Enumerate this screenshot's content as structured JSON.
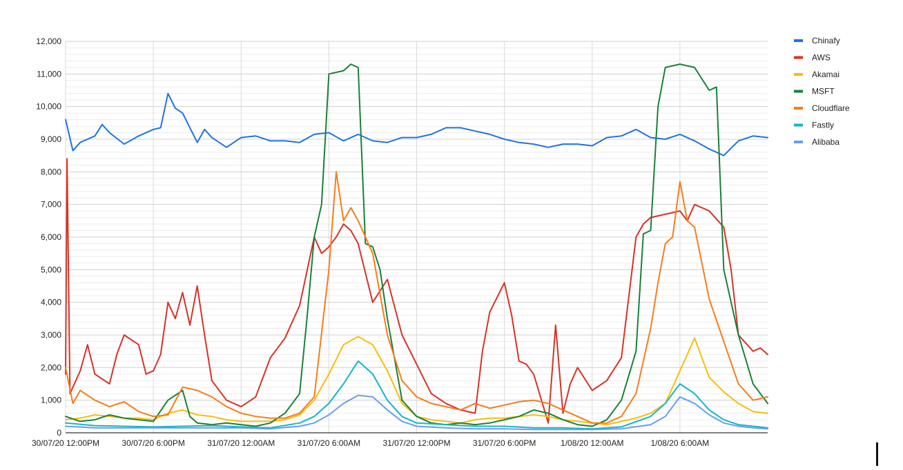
{
  "chart_data": {
    "type": "line",
    "title": "",
    "xlabel": "",
    "ylabel": "",
    "ylim": [
      0,
      12000
    ],
    "xlim": [
      "30/07/20 12:00PM",
      "1/08/20 12:00PM"
    ],
    "grid": true,
    "legend_position": "right",
    "y_ticks": [
      "0",
      "1,000",
      "2,000",
      "3,000",
      "4,000",
      "5,000",
      "6,000",
      "7,000",
      "8,000",
      "9,000",
      "10,000",
      "11,000",
      "12,000"
    ],
    "y_tick_values": [
      0,
      1000,
      2000,
      3000,
      4000,
      5000,
      6000,
      7000,
      8000,
      9000,
      10000,
      11000,
      12000
    ],
    "x_ticks": [
      "30/07/20 12:00PM",
      "30/07/20 6:00PM",
      "31/07/20 12:00AM",
      "31/07/20 6:00AM",
      "31/07/20 12:00PM",
      "31/07/20 6:00PM",
      "1/08/20 12:00AM",
      "1/08/20 6:00AM"
    ],
    "x_tick_hours": [
      0,
      6,
      12,
      18,
      24,
      30,
      36,
      42
    ],
    "x_range_hours": [
      0,
      48
    ],
    "x_unit": "hours after 30/07/20 12:00PM",
    "series": [
      {
        "name": "Chinafy",
        "color": "#1a73e8",
        "x": [
          0,
          0.5,
          1,
          2,
          2.5,
          3,
          4,
          5,
          6,
          6.5,
          7,
          7.5,
          8,
          9,
          9.5,
          10,
          11,
          12,
          13,
          14,
          15,
          16,
          17,
          18,
          19,
          20,
          21,
          22,
          23,
          24,
          25,
          26,
          27,
          28,
          29,
          30,
          31,
          32,
          33,
          34,
          35,
          36,
          37,
          38,
          39,
          40,
          41,
          42,
          43,
          44,
          45,
          46,
          47,
          48
        ],
        "y": [
          9600,
          8650,
          8900,
          9100,
          9450,
          9200,
          8850,
          9100,
          9300,
          9350,
          10400,
          9950,
          9800,
          8900,
          9300,
          9050,
          8750,
          9050,
          9100,
          8950,
          8950,
          8900,
          9150,
          9200,
          8950,
          9150,
          8950,
          8900,
          9050,
          9050,
          9150,
          9350,
          9350,
          9250,
          9150,
          9000,
          8900,
          8850,
          8750,
          8850,
          8850,
          8800,
          9050,
          9100,
          9300,
          9050,
          9000,
          9150,
          8950,
          8700,
          8500,
          8950,
          9100,
          9050
        ]
      },
      {
        "name": "AWS",
        "color": "#d93025",
        "x": [
          0,
          0.1,
          0.3,
          1,
          1.5,
          2,
          3,
          3.5,
          4,
          5,
          5.5,
          6,
          6.5,
          7,
          7.5,
          8,
          8.5,
          9,
          9.5,
          10,
          11,
          12,
          13,
          14,
          15,
          16,
          17,
          17.5,
          18,
          18.5,
          19,
          19.5,
          20,
          21,
          22,
          23,
          24,
          25,
          26,
          27,
          28,
          28.5,
          29,
          30,
          30.5,
          31,
          31.5,
          32,
          33,
          33.5,
          34,
          34.5,
          35,
          36,
          37,
          38,
          39,
          39.5,
          40,
          41,
          42,
          42.5,
          43,
          44,
          45,
          45.5,
          46,
          47,
          47.5,
          48
        ],
        "y": [
          1800,
          8400,
          1200,
          1900,
          2700,
          1800,
          1500,
          2400,
          3000,
          2700,
          1800,
          1900,
          2400,
          4000,
          3500,
          4300,
          3300,
          4500,
          3000,
          1600,
          1000,
          800,
          1100,
          2300,
          2900,
          3900,
          6000,
          5500,
          5700,
          6000,
          6400,
          6200,
          5800,
          4000,
          4700,
          3000,
          2100,
          1200,
          900,
          700,
          600,
          2500,
          3700,
          4600,
          3600,
          2200,
          2100,
          1800,
          300,
          3300,
          600,
          1500,
          2000,
          1300,
          1600,
          2300,
          6000,
          6400,
          6600,
          6700,
          6800,
          6500,
          7000,
          6800,
          6300,
          5000,
          3000,
          2500,
          2600,
          2400
        ]
      },
      {
        "name": "Akamai",
        "color": "#fbbc04",
        "x": [
          0,
          1,
          2,
          3,
          4,
          5,
          6,
          7,
          8,
          9,
          10,
          11,
          12,
          13,
          14,
          15,
          16,
          17,
          18,
          19,
          20,
          21,
          22,
          23,
          24,
          25,
          26,
          27,
          28,
          29,
          30,
          31,
          32,
          33,
          34,
          35,
          36,
          37,
          38,
          39,
          40,
          41,
          42,
          43,
          44,
          45,
          46,
          47,
          48
        ],
        "y": [
          400,
          450,
          550,
          500,
          450,
          450,
          400,
          600,
          700,
          550,
          500,
          400,
          350,
          350,
          350,
          400,
          550,
          1000,
          1800,
          2700,
          2950,
          2700,
          1900,
          900,
          500,
          400,
          350,
          300,
          400,
          450,
          450,
          500,
          550,
          500,
          400,
          350,
          300,
          250,
          350,
          450,
          600,
          900,
          1900,
          2900,
          1700,
          1250,
          900,
          650,
          600
        ]
      },
      {
        "name": "MSFT",
        "color": "#188038",
        "x": [
          0,
          1,
          2,
          3,
          4,
          5,
          6,
          7,
          8,
          8.5,
          9,
          10,
          11,
          12,
          13,
          14,
          15,
          16,
          16.5,
          17,
          17.5,
          18,
          19,
          19.5,
          20,
          20.5,
          21,
          21.5,
          22,
          23,
          24,
          25,
          26,
          27,
          28,
          29,
          30,
          31,
          32,
          33,
          34,
          35,
          36,
          37,
          38,
          39,
          39.5,
          40,
          40.5,
          41,
          42,
          43,
          44,
          44.5,
          45,
          46,
          47,
          47.5,
          48
        ],
        "y": [
          500,
          350,
          400,
          550,
          450,
          400,
          350,
          1000,
          1300,
          500,
          300,
          250,
          300,
          250,
          200,
          300,
          600,
          1200,
          3500,
          6000,
          7000,
          11000,
          11100,
          11300,
          11200,
          5800,
          5700,
          5000,
          3500,
          1000,
          500,
          300,
          250,
          300,
          250,
          300,
          400,
          500,
          700,
          600,
          400,
          250,
          200,
          400,
          1000,
          2500,
          6100,
          6200,
          10000,
          11200,
          11300,
          11200,
          10500,
          10600,
          5000,
          3000,
          1500,
          1200,
          900
        ]
      },
      {
        "name": "Cloudflare",
        "color": "#fa7b17",
        "x": [
          0,
          0.5,
          1,
          2,
          3,
          4,
          5,
          6,
          7,
          8,
          9,
          10,
          11,
          12,
          13,
          14,
          15,
          16,
          17,
          18,
          18.5,
          19,
          19.5,
          20,
          21,
          22,
          23,
          24,
          25,
          26,
          27,
          28,
          29,
          30,
          31,
          32,
          33,
          34,
          35,
          36,
          37,
          38,
          39,
          40,
          40.5,
          41,
          41.5,
          42,
          42.5,
          43,
          44,
          45,
          46,
          47,
          48
        ],
        "y": [
          2000,
          900,
          1300,
          1000,
          800,
          950,
          650,
          500,
          550,
          1400,
          1300,
          1100,
          800,
          600,
          500,
          450,
          450,
          600,
          1100,
          5000,
          8000,
          6500,
          6900,
          6500,
          5500,
          3000,
          1600,
          1100,
          900,
          800,
          700,
          900,
          750,
          850,
          950,
          1000,
          900,
          700,
          500,
          300,
          300,
          500,
          1200,
          3200,
          4600,
          5800,
          6000,
          7700,
          6500,
          6300,
          4100,
          2800,
          1500,
          1000,
          1100
        ]
      },
      {
        "name": "Fastly",
        "color": "#12b5cb",
        "x": [
          0,
          2,
          4,
          6,
          8,
          10,
          12,
          14,
          16,
          17,
          18,
          19,
          20,
          21,
          22,
          23,
          24,
          26,
          28,
          30,
          32,
          34,
          36,
          38,
          40,
          41,
          42,
          43,
          44,
          45,
          46,
          47,
          48
        ],
        "y": [
          300,
          220,
          200,
          180,
          200,
          220,
          180,
          150,
          300,
          500,
          900,
          1500,
          2200,
          1800,
          1000,
          500,
          300,
          250,
          200,
          200,
          150,
          150,
          120,
          180,
          500,
          900,
          1500,
          1200,
          700,
          400,
          250,
          200,
          150
        ]
      },
      {
        "name": "Alibaba",
        "color": "#669df6",
        "x": [
          0,
          2,
          4,
          6,
          8,
          10,
          12,
          14,
          16,
          17,
          18,
          19,
          20,
          21,
          22,
          23,
          24,
          26,
          28,
          30,
          32,
          34,
          36,
          38,
          40,
          41,
          42,
          43,
          44,
          45,
          46,
          47,
          48
        ],
        "y": [
          200,
          150,
          150,
          150,
          150,
          150,
          150,
          120,
          200,
          300,
          550,
          900,
          1150,
          1100,
          700,
          350,
          200,
          150,
          120,
          120,
          100,
          100,
          100,
          120,
          250,
          500,
          1100,
          900,
          550,
          300,
          200,
          150,
          120
        ]
      }
    ]
  }
}
